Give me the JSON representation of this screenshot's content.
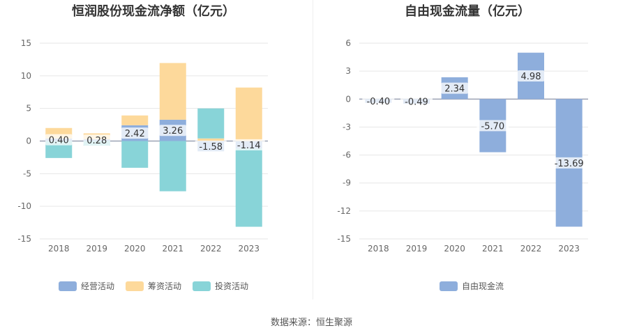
{
  "colors": {
    "operating": "#8eaedc",
    "financing": "#fdd99b",
    "investing": "#88d4d8",
    "free_cf": "#8eaedc"
  },
  "source": "数据来源：恒生聚源",
  "chart_data": [
    {
      "type": "bar",
      "title": "恒润股份现金流净额（亿元）",
      "categories": [
        "2018",
        "2019",
        "2020",
        "2021",
        "2022",
        "2023"
      ],
      "ylim": [
        -15,
        15
      ],
      "yticks": [
        15,
        10,
        5,
        0,
        -5,
        -10,
        -15
      ],
      "series": [
        {
          "name": "经营活动",
          "values": [
            0.4,
            0.28,
            2.42,
            3.26,
            -1.58,
            -1.14
          ],
          "labels": [
            "0.40",
            "0.28",
            "2.42",
            "3.26",
            "-1.58",
            "-1.14"
          ]
        },
        {
          "name": "筹资活动",
          "values": [
            1.6,
            0.9,
            1.5,
            8.7,
            0.4,
            8.2
          ]
        },
        {
          "name": "投资活动",
          "values": [
            -2.6,
            -0.7,
            -4.1,
            -7.7,
            4.6,
            -12.0
          ]
        }
      ],
      "legend": "bottom"
    },
    {
      "type": "bar",
      "title": "自由现金流量（亿元）",
      "categories": [
        "2018",
        "2019",
        "2020",
        "2021",
        "2022",
        "2023"
      ],
      "ylim": [
        -15,
        6
      ],
      "yticks": [
        6,
        3,
        0,
        -3,
        -6,
        -9,
        -12,
        -15
      ],
      "series": [
        {
          "name": "自由现金流",
          "values": [
            -0.4,
            -0.49,
            2.34,
            -5.7,
            4.98,
            -13.69
          ],
          "labels": [
            "-0.40",
            "-0.49",
            "2.34",
            "-5.70",
            "4.98",
            "-13.69"
          ]
        }
      ],
      "legend": "bottom"
    }
  ]
}
